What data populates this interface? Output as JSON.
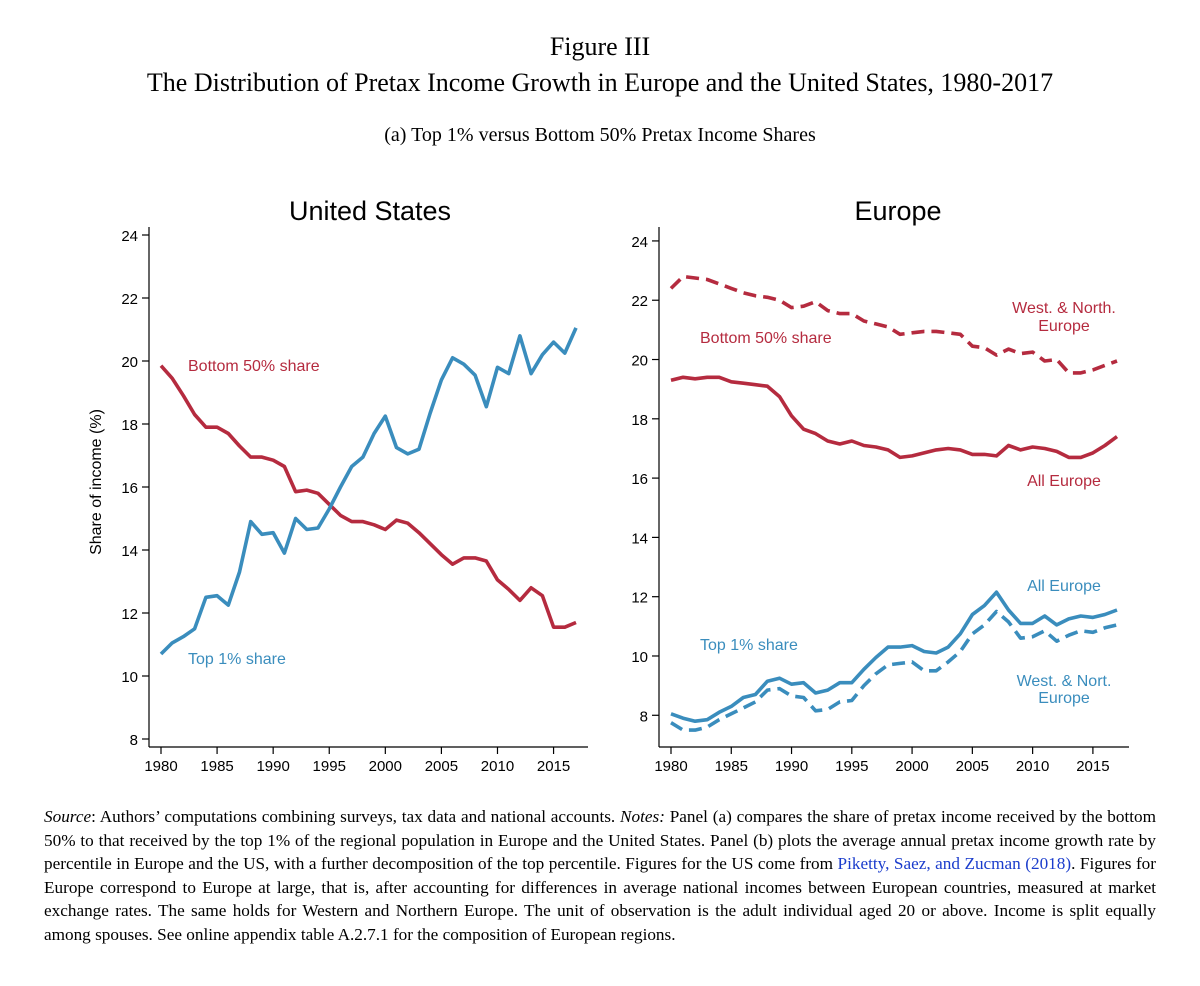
{
  "figure": {
    "title": "Figure III",
    "subtitle": "The Distribution of Pretax Income Growth in Europe and the United States, 1980-2017",
    "panel_label": "(a) Top 1% versus Bottom 50% Pretax Income Shares"
  },
  "colors": {
    "bottom50": "#b52b3f",
    "top1": "#3a8dbd",
    "axis": "#000000"
  },
  "chart_data": [
    {
      "type": "line",
      "title": "United States",
      "ylabel": "Share of income (%)",
      "xlabel": "",
      "xlim": [
        1980,
        2017
      ],
      "ylim": [
        8,
        24
      ],
      "xticks": [
        1980,
        1985,
        1990,
        1995,
        2000,
        2005,
        2010,
        2015
      ],
      "yticks": [
        8,
        10,
        12,
        14,
        16,
        18,
        20,
        22,
        24
      ],
      "grid": false,
      "x": [
        1980,
        1981,
        1982,
        1983,
        1984,
        1985,
        1986,
        1987,
        1988,
        1989,
        1990,
        1991,
        1992,
        1993,
        1994,
        1995,
        1996,
        1997,
        1998,
        1999,
        2000,
        2001,
        2002,
        2003,
        2004,
        2005,
        2006,
        2007,
        2008,
        2009,
        2010,
        2011,
        2012,
        2013,
        2014,
        2015,
        2016,
        2017
      ],
      "series": [
        {
          "key": "bottom50",
          "dashed": false,
          "values": [
            19.85,
            19.45,
            18.9,
            18.3,
            17.9,
            17.9,
            17.7,
            17.3,
            16.95,
            16.95,
            16.85,
            16.65,
            15.85,
            15.9,
            15.8,
            15.45,
            15.1,
            14.9,
            14.9,
            14.8,
            14.65,
            14.95,
            14.85,
            14.55,
            14.2,
            13.85,
            13.55,
            13.75,
            13.75,
            13.65,
            13.05,
            12.75,
            12.4,
            12.8,
            12.55,
            11.55,
            11.55,
            11.7
          ]
        },
        {
          "key": "top1",
          "dashed": false,
          "values": [
            10.7,
            11.05,
            11.25,
            11.5,
            12.5,
            12.55,
            12.25,
            13.3,
            14.9,
            14.5,
            14.55,
            13.9,
            15.0,
            14.65,
            14.7,
            15.3,
            16.0,
            16.65,
            16.95,
            17.7,
            18.25,
            17.25,
            17.05,
            17.2,
            18.35,
            19.4,
            20.1,
            19.9,
            19.55,
            18.55,
            19.8,
            19.6,
            20.8,
            19.6,
            20.2,
            20.6,
            20.25,
            21.05
          ]
        }
      ],
      "annotations": [
        {
          "key": "bottom50",
          "text": "Bottom 50% share"
        },
        {
          "key": "top1",
          "text": "Top 1% share"
        }
      ]
    },
    {
      "type": "line",
      "title": "Europe",
      "ylabel": "",
      "xlabel": "",
      "xlim": [
        1980,
        2017
      ],
      "ylim": [
        7.2,
        24.2
      ],
      "xticks": [
        1980,
        1985,
        1990,
        1995,
        2000,
        2005,
        2010,
        2015
      ],
      "yticks": [
        8,
        10,
        12,
        14,
        16,
        18,
        20,
        22,
        24
      ],
      "grid": false,
      "x": [
        1980,
        1981,
        1982,
        1983,
        1984,
        1985,
        1986,
        1987,
        1988,
        1989,
        1990,
        1991,
        1992,
        1993,
        1994,
        1995,
        1996,
        1997,
        1998,
        1999,
        2000,
        2001,
        2002,
        2003,
        2004,
        2005,
        2006,
        2007,
        2008,
        2009,
        2010,
        2011,
        2012,
        2013,
        2014,
        2015,
        2016,
        2017
      ],
      "series": [
        {
          "key": "bottom50",
          "dashed": true,
          "label": "West. & North. Europe",
          "values": [
            22.4,
            22.8,
            22.75,
            22.7,
            22.55,
            22.4,
            22.25,
            22.15,
            22.1,
            22.0,
            21.75,
            21.8,
            21.95,
            21.65,
            21.55,
            21.55,
            21.3,
            21.2,
            21.1,
            20.85,
            20.9,
            20.95,
            20.95,
            20.9,
            20.85,
            20.45,
            20.4,
            20.15,
            20.35,
            20.2,
            20.25,
            19.95,
            20.0,
            19.55,
            19.55,
            19.65,
            19.8,
            19.95
          ]
        },
        {
          "key": "bottom50",
          "dashed": false,
          "label": "All Europe",
          "values": [
            19.3,
            19.4,
            19.35,
            19.4,
            19.4,
            19.25,
            19.2,
            19.15,
            19.1,
            18.75,
            18.1,
            17.65,
            17.5,
            17.25,
            17.15,
            17.25,
            17.1,
            17.05,
            16.95,
            16.7,
            16.75,
            16.85,
            16.95,
            17.0,
            16.95,
            16.8,
            16.8,
            16.75,
            17.1,
            16.95,
            17.05,
            17.0,
            16.9,
            16.7,
            16.7,
            16.85,
            17.1,
            17.4
          ]
        },
        {
          "key": "top1",
          "dashed": false,
          "label": "All Europe",
          "values": [
            8.05,
            7.9,
            7.8,
            7.85,
            8.1,
            8.3,
            8.6,
            8.7,
            9.15,
            9.25,
            9.05,
            9.1,
            8.75,
            8.85,
            9.1,
            9.1,
            9.55,
            9.95,
            10.3,
            10.3,
            10.35,
            10.15,
            10.1,
            10.3,
            10.75,
            11.4,
            11.7,
            12.15,
            11.55,
            11.1,
            11.1,
            11.35,
            11.05,
            11.25,
            11.35,
            11.3,
            11.4,
            11.55
          ]
        },
        {
          "key": "top1",
          "dashed": true,
          "label": "West. & Nort. Europe",
          "values": [
            7.75,
            7.5,
            7.5,
            7.6,
            7.85,
            8.05,
            8.25,
            8.45,
            8.85,
            8.9,
            8.65,
            8.6,
            8.15,
            8.2,
            8.45,
            8.5,
            9.0,
            9.4,
            9.7,
            9.75,
            9.8,
            9.5,
            9.5,
            9.8,
            10.15,
            10.75,
            11.05,
            11.5,
            11.15,
            10.6,
            10.65,
            10.85,
            10.5,
            10.7,
            10.85,
            10.8,
            10.95,
            11.05
          ]
        }
      ],
      "annotations": [
        {
          "key": "bottom50",
          "text": "Bottom 50% share"
        },
        {
          "key": "bottom50",
          "text": "West. & North."
        },
        {
          "key": "bottom50",
          "text": "Europe"
        },
        {
          "key": "bottom50",
          "text": "All Europe"
        },
        {
          "key": "top1",
          "text": "All Europe"
        },
        {
          "key": "top1",
          "text": "Top 1% share"
        },
        {
          "key": "top1",
          "text": "West. & Nort."
        },
        {
          "key": "top1",
          "text": "Europe"
        }
      ]
    }
  ],
  "notes": {
    "source_label": "Source",
    "source_text": ": Authors’ computations combining surveys, tax data and national accounts. ",
    "notes_label": "Notes:",
    "notes_text_1": " Panel (a) compares the share of pretax income received by the bottom 50% to that received by the top 1% of the regional population in Europe and the United States. Panel (b) plots the average annual pretax income growth rate by percentile in Europe and the US, with a further decomposition of the top percentile. Figures for the US come from ",
    "citation": "Piketty, Saez, and Zucman (2018)",
    "notes_text_2": ". Figures for Europe correspond to Europe at large, that is, after accounting for differences in average national incomes between European countries, measured at market exchange rates. The same holds for Western and Northern Europe. The unit of observation is the adult individual aged 20 or above. Income is split equally among spouses. See online appendix table A.2.7.1 for the composition of European regions."
  }
}
